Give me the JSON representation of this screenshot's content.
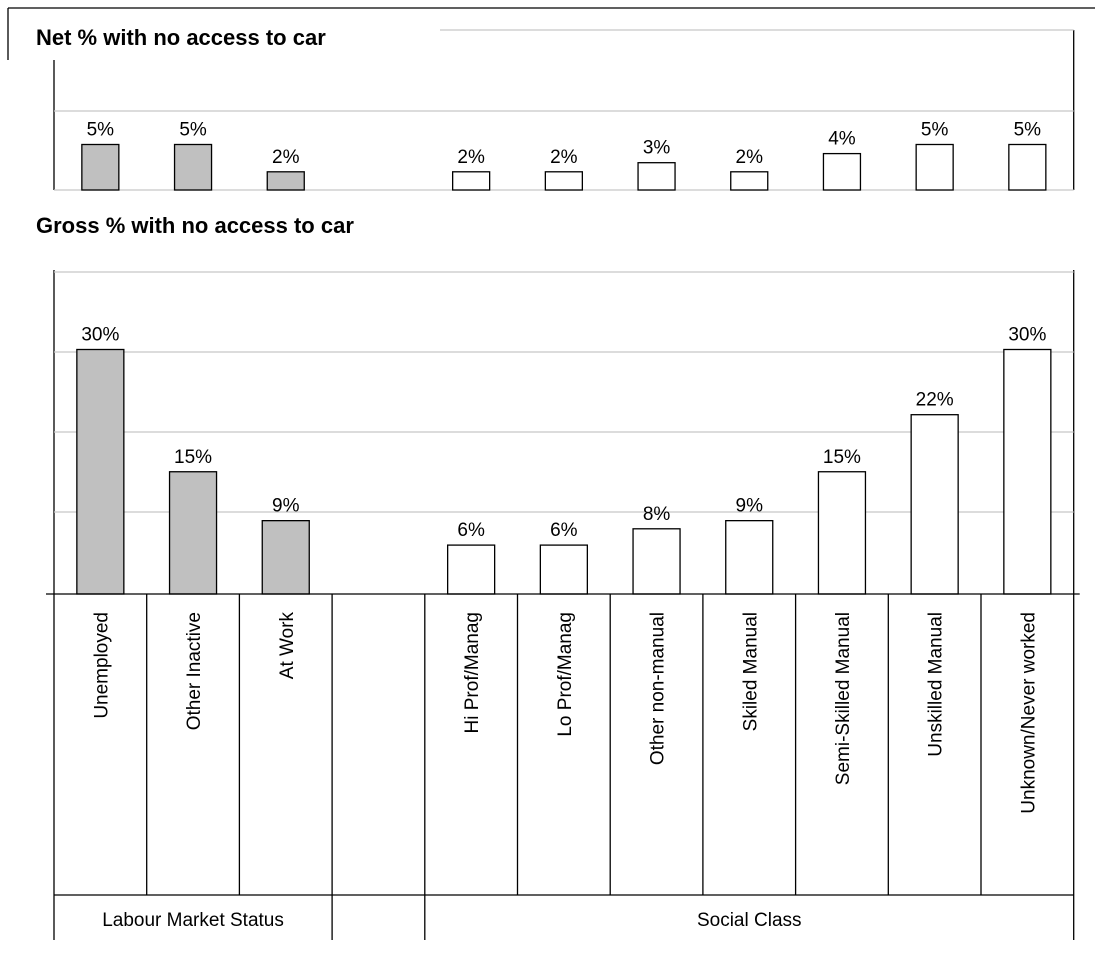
{
  "chart_data": [
    {
      "type": "bar",
      "title": "Net % with no access to car",
      "categories": [
        "Unemployed",
        "Other Inactive",
        "At Work",
        "",
        "Hi Prof/Manag",
        "Lo Prof/Manag",
        "Other non-manual",
        "Skiled Manual",
        "Semi-Skilled Manual",
        "Unskilled Manual",
        "Unknown/Never  worked"
      ],
      "values": [
        5,
        5,
        2,
        null,
        2,
        2,
        3,
        2,
        4,
        5,
        5
      ],
      "data_labels": [
        "5%",
        "5%",
        "2%",
        "",
        "2%",
        "2%",
        "3%",
        "2%",
        "4%",
        "5%",
        "5%"
      ],
      "bar_colors": [
        "#c0c0c0",
        "#c0c0c0",
        "#c0c0c0",
        "",
        "#ffffff",
        "#ffffff",
        "#ffffff",
        "#ffffff",
        "#ffffff",
        "#ffffff",
        "#ffffff"
      ],
      "ylim": [
        0,
        10
      ],
      "grid": true
    },
    {
      "type": "bar",
      "title": "Gross % with no access to car",
      "categories": [
        "Unemployed",
        "Other Inactive",
        "At Work",
        "",
        "Hi Prof/Manag",
        "Lo Prof/Manag",
        "Other non-manual",
        "Skiled Manual",
        "Semi-Skilled Manual",
        "Unskilled Manual",
        "Unknown/Never  worked"
      ],
      "values": [
        30,
        15,
        9,
        null,
        6,
        6,
        8,
        9,
        15,
        22,
        30
      ],
      "data_labels": [
        "30%",
        "15%",
        "9%",
        "",
        "6%",
        "6%",
        "8%",
        "9%",
        "15%",
        "22%",
        "30%"
      ],
      "bar_colors": [
        "#c0c0c0",
        "#c0c0c0",
        "#c0c0c0",
        "",
        "#ffffff",
        "#ffffff",
        "#ffffff",
        "#ffffff",
        "#ffffff",
        "#ffffff",
        "#ffffff"
      ],
      "ylim": [
        0,
        40
      ],
      "grid": true
    }
  ],
  "groups": [
    {
      "label": "Labour Market  Status",
      "span": [
        0,
        2
      ]
    },
    {
      "label": "Social Class",
      "span": [
        4,
        10
      ]
    }
  ],
  "colors": {
    "status_bar": "#c0c0c0",
    "class_bar": "#ffffff",
    "grid": "#c8c8c8"
  }
}
